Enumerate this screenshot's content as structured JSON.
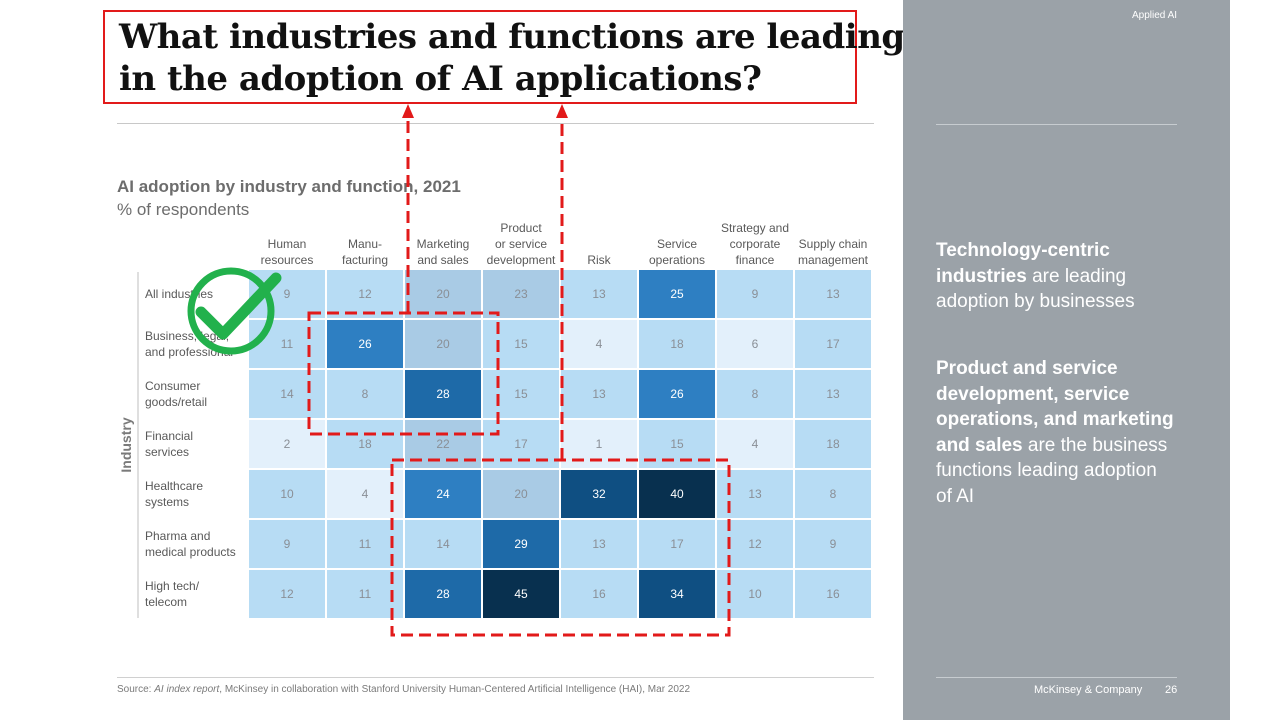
{
  "slide": {
    "title_line1": "What industries and functions are leading",
    "title_line2": "in the adoption of AI applications?",
    "section_tag": "Applied AI",
    "source_prefix": "Source: ",
    "source_italic": "AI index report",
    "source_rest": ", McKinsey in collaboration with Stanford University Human-Centered Artificial Intelligence (HAI), Mar 2022",
    "footer_company": "McKinsey & Company",
    "page_number": "26"
  },
  "sidebar": {
    "point1_bold": "Technology-centric industries",
    "point1_rest": " are leading adoption by businesses",
    "point2_bold": "Product and service development, service operations, and marketing and sales",
    "point2_rest": " are the business functions leading adoption of AI"
  },
  "colors": {
    "annotation_red": "#e21a1a",
    "check_green": "#22b14c",
    "scale": [
      "#e3f0fb",
      "#b7dcf4",
      "#a9cbe5",
      "#2e7fc2",
      "#1e6aa8",
      "#0f4f82",
      "#08304f"
    ]
  },
  "chart_data": {
    "type": "heatmap",
    "title": "AI adoption by industry and function, 2021",
    "subtitle": "% of respondents",
    "ylabel": "Industry",
    "columns": [
      [
        "Human",
        "resources"
      ],
      [
        "Manu-",
        "facturing"
      ],
      [
        "Marketing",
        "and sales"
      ],
      [
        "Product",
        "or service",
        "development"
      ],
      [
        "Risk"
      ],
      [
        "Service",
        "operations"
      ],
      [
        "Strategy and",
        "corporate",
        "finance"
      ],
      [
        "Supply chain",
        "management"
      ]
    ],
    "rows": [
      [
        "All industries"
      ],
      [
        "Business, legal,",
        "and professional"
      ],
      [
        "Consumer",
        "goods/retail"
      ],
      [
        "Financial",
        "services"
      ],
      [
        "Healthcare",
        "systems"
      ],
      [
        "Pharma and",
        "medical products"
      ],
      [
        "High tech/",
        "telecom"
      ]
    ],
    "values": [
      [
        9,
        12,
        20,
        23,
        13,
        25,
        9,
        13
      ],
      [
        11,
        26,
        20,
        15,
        4,
        18,
        6,
        17
      ],
      [
        14,
        8,
        28,
        15,
        13,
        26,
        8,
        13
      ],
      [
        2,
        18,
        22,
        17,
        1,
        15,
        4,
        18
      ],
      [
        10,
        4,
        24,
        20,
        32,
        40,
        13,
        8
      ],
      [
        9,
        11,
        14,
        29,
        13,
        17,
        12,
        9
      ],
      [
        12,
        11,
        28,
        45,
        16,
        34,
        10,
        16
      ]
    ]
  }
}
